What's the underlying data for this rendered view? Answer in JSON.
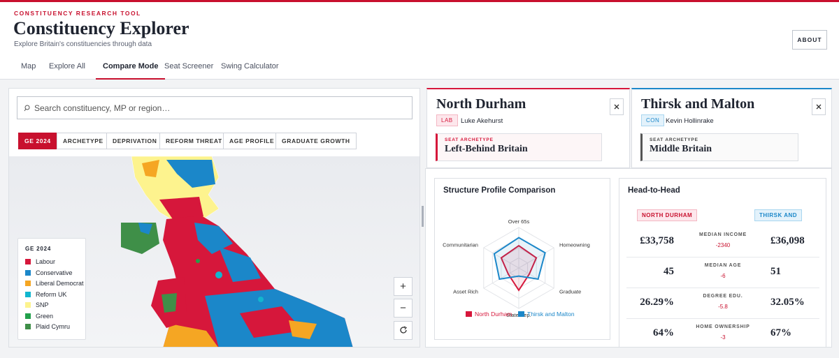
{
  "header": {
    "kicker": "CONSTITUENCY RESEARCH TOOL",
    "title": "Constituency Explorer",
    "subtitle": "Explore Britain's constituencies through data",
    "about": "ABOUT"
  },
  "nav": [
    "Map",
    "Explore All",
    "Compare Mode",
    "Seat Screener",
    "Swing Calculator"
  ],
  "search": {
    "placeholder": "Search constituency, MP or region…"
  },
  "filters": [
    "GE 2024",
    "ARCHETYPE",
    "DEPRIVATION",
    "REFORM THREAT",
    "AGE PROFILE",
    "GRADUATE GROWTH"
  ],
  "legend": {
    "title": "GE 2024",
    "items": [
      {
        "label": "Labour",
        "color": "#d6173b"
      },
      {
        "label": "Conservative",
        "color": "#1b87c9"
      },
      {
        "label": "Liberal Democrat",
        "color": "#f5a623"
      },
      {
        "label": "Reform UK",
        "color": "#12b6cf"
      },
      {
        "label": "SNP",
        "color": "#fdf38e"
      },
      {
        "label": "Green",
        "color": "#22a04b"
      },
      {
        "label": "Plaid Cymru",
        "color": "#3f8f48"
      }
    ]
  },
  "map_controls": [
    "+",
    "−"
  ],
  "seats": [
    {
      "name": "North Durham",
      "party": "LAB",
      "mp": "Luke Akehurst",
      "archetype_label": "SEAT ARCHETYPE",
      "archetype": "Left-Behind Britain",
      "color": "#d6173b"
    },
    {
      "name": "Thirsk and Malton",
      "party": "CON",
      "mp": "Kevin Hollinrake",
      "archetype_label": "SEAT ARCHETYPE",
      "archetype": "Middle Britain",
      "color": "#1b87c9"
    }
  ],
  "chart_data": {
    "type": "radar",
    "title": "Structure Profile Comparison",
    "categories": [
      "Over 65s",
      "Homeowning",
      "Graduate",
      "State Dep.",
      "Asset Rich",
      "Communitarian"
    ],
    "rlim": [
      0,
      100
    ],
    "series": [
      {
        "name": "North Durham",
        "color": "#d6173b",
        "values": [
          55,
          50,
          30,
          55,
          30,
          50
        ]
      },
      {
        "name": "Thirsk and Malton",
        "color": "#1b87c9",
        "values": [
          75,
          75,
          55,
          20,
          55,
          70
        ]
      }
    ]
  },
  "head_to_head": {
    "title": "Head-to-Head",
    "left": "NORTH DURHAM",
    "right": "THIRSK AND",
    "rows": [
      {
        "label": "MEDIAN INCOME",
        "left": "£33,758",
        "diff": "-2340",
        "right": "£36,098"
      },
      {
        "label": "MEDIAN AGE",
        "left": "45",
        "diff": "-6",
        "right": "51"
      },
      {
        "label": "DEGREE EDU.",
        "left": "26.29%",
        "diff": "-5.8",
        "right": "32.05%"
      },
      {
        "label": "HOME OWNERSHIP",
        "left": "64%",
        "diff": "-3",
        "right": "67%"
      }
    ]
  }
}
